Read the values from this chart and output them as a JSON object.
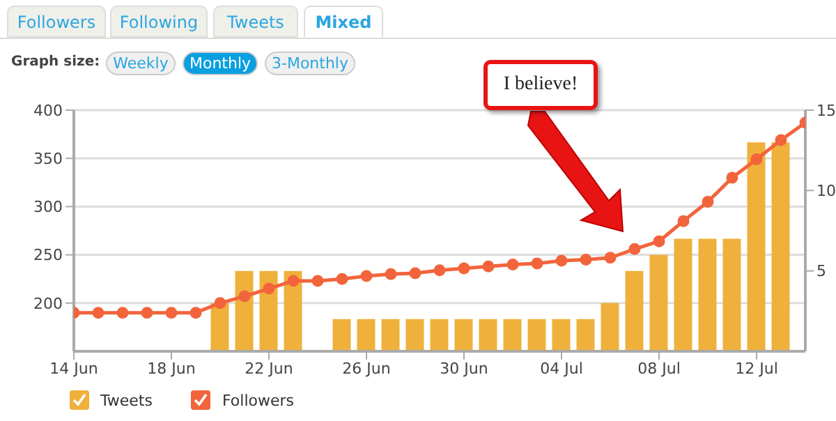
{
  "chart_data": {
    "type": "bar",
    "annotations": [
      "Followers",
      "Following",
      "Tweets",
      "Mixed",
      "Graph size:",
      "Weekly",
      "Monthly",
      "3-Monthly",
      "I believe!"
    ],
    "categories": [
      "14 Jun",
      null,
      null,
      null,
      "18 Jun",
      null,
      null,
      null,
      "22 Jun",
      null,
      null,
      null,
      "26 Jun",
      null,
      null,
      null,
      "30 Jun",
      null,
      null,
      null,
      "04 Jul",
      null,
      null,
      null,
      "08 Jul",
      null,
      null,
      null,
      "12 Jul",
      null,
      null
    ],
    "series": [
      {
        "name": "Tweets",
        "axis": "y2",
        "color": "#efb13c",
        "values": [
          0,
          0,
          0,
          0,
          0,
          0,
          3,
          5,
          5,
          5,
          0,
          2,
          2,
          2,
          2,
          2,
          2,
          2,
          2,
          2,
          2,
          2,
          3,
          5,
          6,
          7,
          7,
          7,
          13,
          13,
          null
        ]
      },
      {
        "name": "Followers",
        "type": "line",
        "color": "#f2643c",
        "values": [
          190,
          190,
          190,
          190,
          190,
          190,
          200,
          207,
          215,
          223,
          223,
          225,
          228,
          230,
          231,
          234,
          236,
          238,
          240,
          241,
          244,
          245,
          247,
          256,
          264,
          285,
          305,
          330,
          349,
          369,
          387
        ]
      }
    ],
    "ylim": [
      150,
      400
    ],
    "yticks": [
      200,
      250,
      300,
      350,
      400
    ],
    "y2lim": [
      0,
      15
    ],
    "y2ticks": [
      5,
      10,
      15
    ],
    "grid": "y",
    "legend": "bottom",
    "marker": "circle",
    "line_style": "solid"
  }
}
